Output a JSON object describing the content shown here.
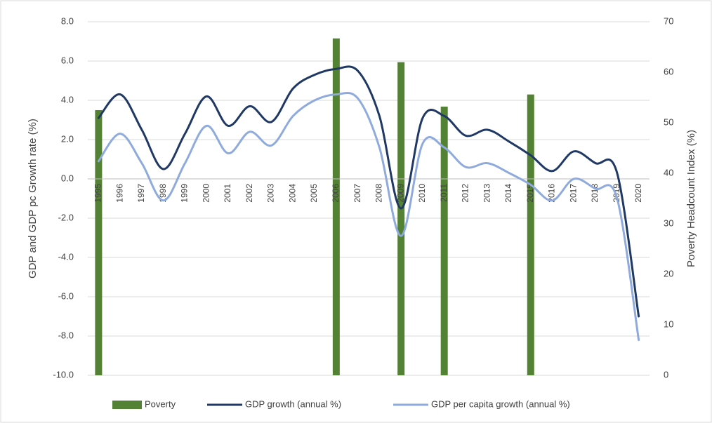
{
  "chart_data": {
    "type": "bar_line",
    "categories": [
      "1995",
      "1996",
      "1997",
      "1998",
      "1999",
      "2000",
      "2001",
      "2002",
      "2003",
      "2004",
      "2005",
      "2006",
      "2007",
      "2008",
      "2009",
      "2010",
      "2011",
      "2012",
      "2013",
      "2014",
      "2015",
      "2016",
      "2017",
      "2018",
      "2019",
      "2020"
    ],
    "ylabel": "GDP and GDP pc Growth rate (%)",
    "y2label": "Poverty Headcount Index (%)",
    "ylim": [
      -10,
      8
    ],
    "yticks": [
      {
        "value": -10,
        "label": "-10.0"
      },
      {
        "value": -8,
        "label": "-8.0"
      },
      {
        "value": -6,
        "label": "-6.0"
      },
      {
        "value": -4,
        "label": "-4.0"
      },
      {
        "value": -2,
        "label": "-2.0"
      },
      {
        "value": 0,
        "label": "0.0"
      },
      {
        "value": 2,
        "label": "2.0"
      },
      {
        "value": 4,
        "label": "4.0"
      },
      {
        "value": 6,
        "label": "6.0"
      },
      {
        "value": 8,
        "label": "8.0"
      }
    ],
    "y2lim": [
      0,
      70
    ],
    "y2ticks": [
      0,
      10,
      20,
      30,
      40,
      50,
      60,
      70
    ],
    "grid": true,
    "legend": "bottom",
    "series": [
      {
        "name": "Poverty",
        "type": "bar",
        "axis": "y2",
        "color": "#548235",
        "values": [
          52.5,
          null,
          null,
          null,
          null,
          null,
          null,
          null,
          null,
          null,
          null,
          66.7,
          null,
          null,
          62,
          null,
          53.2,
          null,
          null,
          null,
          55.6,
          null,
          null,
          null,
          null,
          null
        ]
      },
      {
        "name": "GDP growth (annual %)",
        "type": "line",
        "color": "#1f3864",
        "values": [
          3.1,
          4.3,
          2.5,
          0.5,
          2.3,
          4.2,
          2.7,
          3.7,
          2.9,
          4.6,
          5.3,
          5.6,
          5.5,
          3.2,
          -1.5,
          3.1,
          3.2,
          2.2,
          2.5,
          1.9,
          1.2,
          0.4,
          1.4,
          0.8,
          0.3,
          -7.0
        ]
      },
      {
        "name": "GDP per capita growth (annual %)",
        "type": "line",
        "color": "#8faadc",
        "values": [
          0.9,
          2.3,
          0.8,
          -1.1,
          0.8,
          2.7,
          1.3,
          2.4,
          1.7,
          3.2,
          4.0,
          4.3,
          4.1,
          1.6,
          -2.9,
          1.8,
          1.6,
          0.6,
          0.8,
          0.3,
          -0.3,
          -1.1,
          0.0,
          -0.5,
          -1.0,
          -8.2
        ]
      }
    ]
  }
}
